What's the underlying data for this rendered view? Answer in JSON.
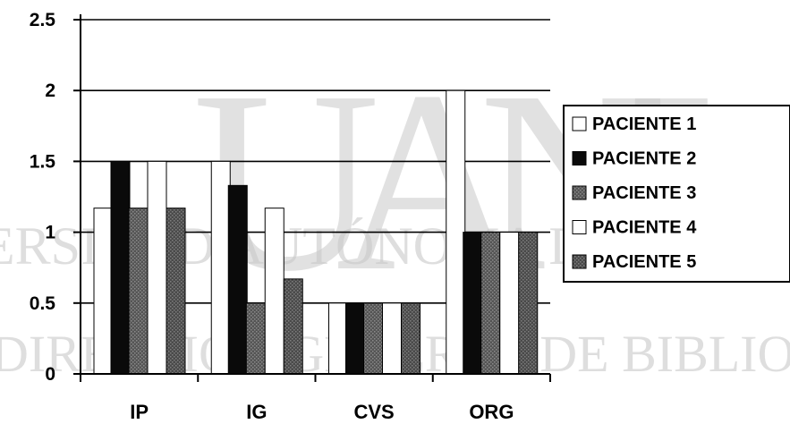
{
  "watermark": {
    "letters": "UANL",
    "lines": [
      "ERSIDAD AUTÓNOMA DE NUEVO",
      "DIRECCIÓN GENERAL DE BIBLIOTECAS"
    ]
  },
  "chart_data": {
    "type": "bar",
    "categories": [
      "IP",
      "IG",
      "CVS",
      "ORG"
    ],
    "series": [
      {
        "name": "PACIENTE 1",
        "values": [
          1.17,
          1.5,
          0.5,
          2.0
        ]
      },
      {
        "name": "PACIENTE 2",
        "values": [
          1.5,
          1.33,
          0.5,
          1.0
        ]
      },
      {
        "name": "PACIENTE 3",
        "values": [
          1.17,
          0.5,
          0.5,
          1.0
        ]
      },
      {
        "name": "PACIENTE 4",
        "values": [
          1.5,
          1.17,
          0.5,
          1.0
        ]
      },
      {
        "name": "PACIENTE 5",
        "values": [
          1.17,
          0.67,
          0.5,
          1.0
        ]
      }
    ],
    "series_colors": [
      "#ffffff",
      "#0a0a0a",
      "#555555",
      "#ffffff",
      "#4a4a4a"
    ],
    "yticks": [
      "0",
      "0.5",
      "1",
      "1.5",
      "2",
      "2.5"
    ],
    "ylim": [
      0,
      2.5
    ],
    "grid": true,
    "legend_position": "right",
    "title": "",
    "xlabel": "",
    "ylabel": ""
  }
}
